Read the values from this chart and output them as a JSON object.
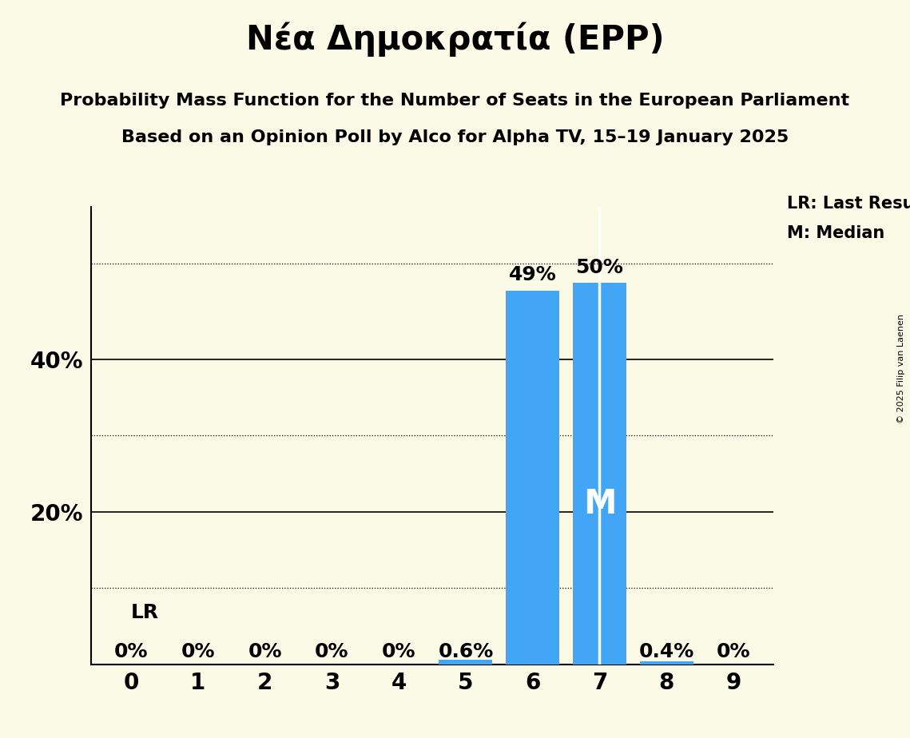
{
  "title": "Νέα Δημοκρατία (EPP)",
  "subtitle1": "Probability Mass Function for the Number of Seats in the European Parliament",
  "subtitle2": "Based on an Opinion Poll by Alco for Alpha TV, 15–19 January 2025",
  "copyright": "© 2025 Filip van Laenen",
  "categories": [
    0,
    1,
    2,
    3,
    4,
    5,
    6,
    7,
    8,
    9
  ],
  "values": [
    0.0,
    0.0,
    0.0,
    0.0,
    0.0,
    0.006,
    0.49,
    0.5,
    0.004,
    0.0
  ],
  "bar_color": "#42a5f5",
  "background_color": "#fafae6",
  "ylim_max": 0.6,
  "last_result_seat": 7,
  "median_seat": 7,
  "legend_lr": "LR: Last Result",
  "legend_m": "M: Median",
  "lr_label": "LR",
  "m_label": "M",
  "bar_labels": [
    "0%",
    "0%",
    "0%",
    "0%",
    "0%",
    "0.6%",
    "49%",
    "50%",
    "0.4%",
    "0%"
  ],
  "title_fontsize": 30,
  "subtitle_fontsize": 16,
  "tick_fontsize": 20,
  "bar_label_fontsize": 18,
  "solid_lines": [
    0.2,
    0.4
  ],
  "dotted_lines": [
    0.1,
    0.3,
    0.525
  ],
  "ytick_positions": [
    0.2,
    0.4
  ],
  "ytick_labels": [
    "20%",
    "40%"
  ]
}
